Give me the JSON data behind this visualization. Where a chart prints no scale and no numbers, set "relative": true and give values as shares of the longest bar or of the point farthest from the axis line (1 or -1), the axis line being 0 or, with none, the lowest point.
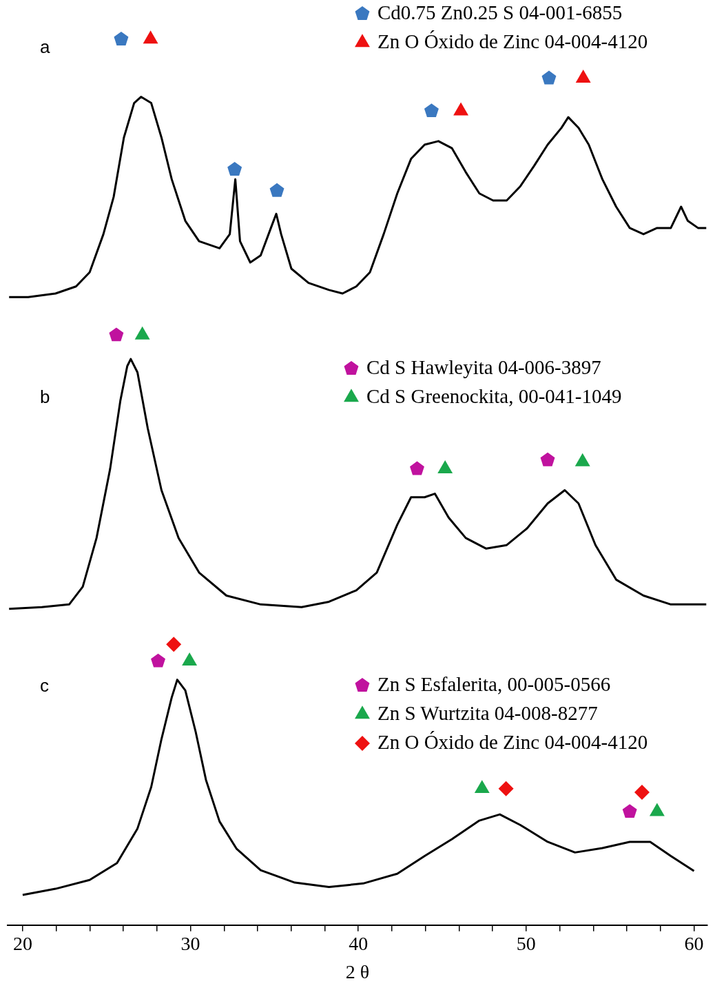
{
  "chart_data": {
    "type": "line",
    "relative": true,
    "annotations": [
      "a",
      "b",
      "c"
    ],
    "xlabel": "2 θ",
    "xlim": [
      19.1,
      60.8
    ],
    "xticks": [
      20,
      {
        "value": 22,
        "label": null
      },
      {
        "value": 24,
        "label": null
      },
      {
        "value": 26,
        "label": null
      },
      {
        "value": 28,
        "label": null
      },
      30,
      {
        "value": 32,
        "label": null
      },
      {
        "value": 34,
        "label": null
      },
      {
        "value": 36,
        "label": null
      },
      {
        "value": 38,
        "label": null
      },
      40,
      {
        "value": 42,
        "label": null
      },
      {
        "value": 44,
        "label": null
      },
      {
        "value": 46,
        "label": null
      },
      {
        "value": 48,
        "label": null
      },
      50,
      {
        "value": 52,
        "label": null
      },
      {
        "value": 54,
        "label": null
      },
      {
        "value": 56,
        "label": null
      },
      {
        "value": 58,
        "label": null
      },
      60
    ],
    "legend": "top right",
    "series": [
      {
        "color": "#000000",
        "marker": "none",
        "line_style": "solid",
        "x": [
          19.19,
          20.33,
          21.96,
          23.18,
          23.99,
          24.81,
          25.42,
          26.03,
          26.64,
          27.05,
          27.66,
          28.27,
          28.88,
          29.69,
          30.51,
          31.73,
          32.34,
          32.67,
          32.95,
          33.56,
          34.18,
          34.79,
          35.11,
          35.4,
          36.01,
          37.03,
          38.25,
          39.06,
          39.88,
          40.69,
          41.51,
          42.32,
          43.14,
          43.95,
          44.77,
          45.58,
          46.4,
          47.21,
          48.03,
          48.84,
          49.65,
          50.47,
          51.28,
          52.1,
          52.51,
          53.12,
          53.73,
          54.54,
          55.36,
          56.17,
          56.99,
          57.8,
          58.62,
          59.23,
          59.63,
          60.24,
          60.73
        ],
        "values": [
          0.709,
          0.709,
          0.713,
          0.721,
          0.737,
          0.78,
          0.822,
          0.889,
          0.928,
          0.935,
          0.928,
          0.889,
          0.842,
          0.795,
          0.772,
          0.764,
          0.78,
          0.842,
          0.772,
          0.748,
          0.756,
          0.787,
          0.803,
          0.78,
          0.741,
          0.725,
          0.717,
          0.713,
          0.721,
          0.737,
          0.78,
          0.826,
          0.865,
          0.881,
          0.885,
          0.877,
          0.85,
          0.826,
          0.818,
          0.818,
          0.834,
          0.857,
          0.881,
          0.9,
          0.912,
          0.9,
          0.881,
          0.842,
          0.811,
          0.787,
          0.78,
          0.787,
          0.787,
          0.811,
          0.795,
          0.787,
          0.787
        ]
      },
      {
        "type": "scatter",
        "name": "Cd0.75 Zn0.25 S 04-001-6855",
        "color": "#3a78c0",
        "x": [
          25.87,
          32.63,
          35.15,
          44.36,
          51.36
        ],
        "values": [
          1.0,
          0.853,
          0.829,
          0.919,
          0.956
        ]
      },
      {
        "type": "scatter",
        "name": "Zn O Óxido de Zinc 04-004-4120",
        "color": "#ee1111",
        "marker": "triangle",
        "x": [
          27.62,
          46.11,
          53.4
        ],
        "values": [
          1.0,
          0.919,
          0.956
        ]
      },
      {
        "color": "#000000",
        "marker": "none",
        "line_style": "solid",
        "x": [
          19.19,
          21.14,
          22.77,
          23.58,
          24.4,
          25.21,
          25.82,
          26.23,
          26.44,
          26.84,
          27.45,
          28.27,
          29.29,
          30.51,
          32.14,
          34.18,
          36.62,
          38.25,
          39.88,
          41.1,
          42.32,
          43.14,
          43.95,
          44.56,
          45.38,
          46.4,
          47.62,
          48.84,
          50.06,
          51.28,
          52.3,
          53.12,
          54.13,
          55.36,
          56.99,
          58.62,
          60.73
        ],
        "values": [
          0.357,
          0.359,
          0.362,
          0.382,
          0.437,
          0.515,
          0.592,
          0.631,
          0.639,
          0.624,
          0.561,
          0.491,
          0.437,
          0.398,
          0.372,
          0.362,
          0.359,
          0.365,
          0.378,
          0.398,
          0.452,
          0.483,
          0.483,
          0.487,
          0.46,
          0.437,
          0.425,
          0.429,
          0.448,
          0.476,
          0.491,
          0.476,
          0.429,
          0.39,
          0.372,
          0.362,
          0.362
        ]
      },
      {
        "type": "scatter",
        "name": "Cd S Hawleyita 04-006-3897",
        "color": "#c0129e",
        "x": [
          25.58,
          43.5,
          51.28
        ],
        "values": [
          0.666,
          0.515,
          0.525
        ]
      },
      {
        "type": "scatter",
        "name": "Cd S Greenockita, 00-041-1049",
        "color": "#1aa84c",
        "marker": "triangle",
        "x": [
          27.13,
          45.17,
          53.36
        ],
        "values": [
          0.666,
          0.515,
          0.523
        ]
      },
      {
        "color": "#000000",
        "marker": "none",
        "line_style": "solid",
        "x": [
          20,
          21.96,
          23.99,
          25.62,
          26.84,
          27.66,
          28.27,
          28.88,
          29.21,
          29.69,
          30.31,
          30.92,
          31.73,
          32.75,
          34.18,
          36.21,
          38.25,
          40.29,
          42.32,
          43.95,
          45.58,
          47.21,
          48.43,
          49.65,
          51.28,
          52.91,
          54.54,
          56.17,
          57.39,
          58.62,
          60
        ],
        "values": [
          0.034,
          0.041,
          0.051,
          0.07,
          0.109,
          0.156,
          0.21,
          0.257,
          0.277,
          0.265,
          0.218,
          0.164,
          0.117,
          0.086,
          0.062,
          0.048,
          0.043,
          0.047,
          0.058,
          0.078,
          0.097,
          0.118,
          0.125,
          0.113,
          0.094,
          0.082,
          0.087,
          0.094,
          0.094,
          0.078,
          0.061
        ]
      },
      {
        "type": "scatter",
        "name": "Zn S Esfalerita, 00-005-0566",
        "color": "#c0129e",
        "x": [
          28.07,
          56.17
        ],
        "values": [
          0.298,
          0.128
        ]
      },
      {
        "type": "scatter",
        "name": "Zn S Wurtzita 04-008-8277",
        "color": "#1aa84c",
        "marker": "triangle",
        "x": [
          29.94,
          47.37,
          57.8
        ],
        "values": [
          0.298,
          0.154,
          0.128
        ]
      },
      {
        "type": "scatter",
        "name": "Zn O Óxido de Zinc 04-004-4120",
        "color": "#ee1111",
        "marker": "diamond",
        "x": [
          29.0,
          48.8,
          56.9
        ],
        "values": [
          0.317,
          0.154,
          0.15
        ]
      }
    ]
  }
}
